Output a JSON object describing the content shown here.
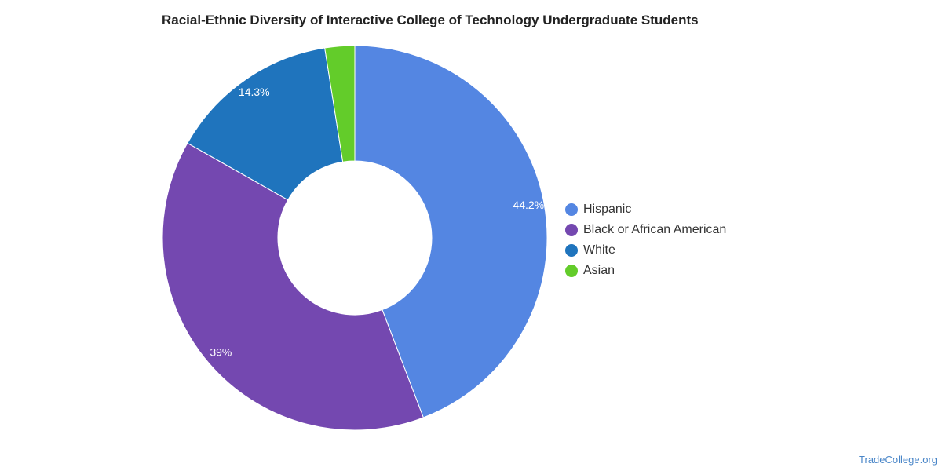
{
  "chart_data": {
    "type": "pie",
    "variant": "donut",
    "title": "Racial-Ethnic Diversity of Interactive College of Technology Undergraduate Students",
    "legend_position": "right",
    "slices": [
      {
        "name": "Hispanic",
        "value": 44.2,
        "label": "44.2%",
        "color": "#5486e2"
      },
      {
        "name": "Black or African American",
        "value": 39.0,
        "label": "39%",
        "color": "#7448b0"
      },
      {
        "name": "White",
        "value": 14.3,
        "label": "14.3%",
        "color": "#1f74bd"
      },
      {
        "name": "Asian",
        "value": 2.5,
        "label": "",
        "color": "#63cc2a"
      }
    ]
  },
  "footer": {
    "credit": "TradeCollege.org"
  }
}
